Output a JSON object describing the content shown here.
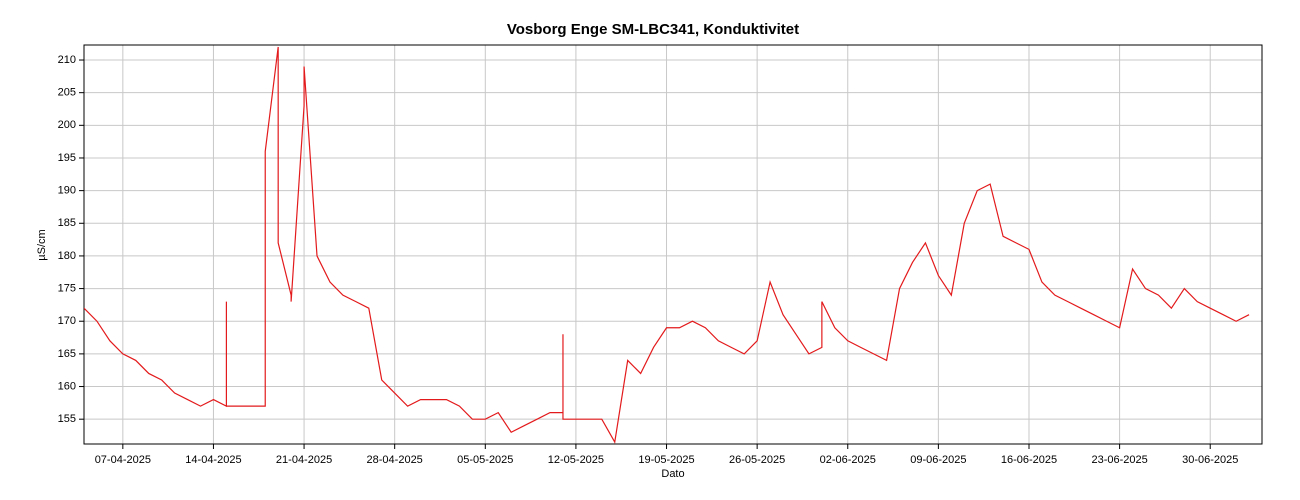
{
  "chart_data": {
    "type": "line",
    "title": "Vosborg Enge SM-LBC341, Konduktivitet",
    "x_label": "Dato",
    "y_label": "µS/cm",
    "xlim": [
      "2025-04-04",
      "2025-07-04"
    ],
    "xticks": [
      {
        "value": "2025-04-07",
        "label": "07-04-2025"
      },
      {
        "value": "2025-04-14",
        "label": "14-04-2025"
      },
      {
        "value": "2025-04-21",
        "label": "21-04-2025"
      },
      {
        "value": "2025-04-28",
        "label": "28-04-2025"
      },
      {
        "value": "2025-05-05",
        "label": "05-05-2025"
      },
      {
        "value": "2025-05-12",
        "label": "12-05-2025"
      },
      {
        "value": "2025-05-19",
        "label": "19-05-2025"
      },
      {
        "value": "2025-05-26",
        "label": "26-05-2025"
      },
      {
        "value": "2025-06-02",
        "label": "02-06-2025"
      },
      {
        "value": "2025-06-09",
        "label": "09-06-2025"
      },
      {
        "value": "2025-06-16",
        "label": "16-06-2025"
      },
      {
        "value": "2025-06-23",
        "label": "23-06-2025"
      },
      {
        "value": "2025-06-30",
        "label": "30-06-2025"
      }
    ],
    "ylim": [
      151.2,
      212.3
    ],
    "yticks": [
      155,
      160,
      165,
      170,
      175,
      180,
      185,
      190,
      195,
      200,
      205,
      210
    ],
    "grid": true,
    "x": [
      "2025-04-04",
      "2025-04-05",
      "2025-04-06",
      "2025-04-07",
      "2025-04-08",
      "2025-04-09",
      "2025-04-10",
      "2025-04-11",
      "2025-04-12",
      "2025-04-13",
      "2025-04-14",
      "2025-04-15",
      "2025-04-15",
      "2025-04-15",
      "2025-04-16",
      "2025-04-17",
      "2025-04-18",
      "2025-04-18",
      "2025-04-19",
      "2025-04-19",
      "2025-04-20",
      "2025-04-20",
      "2025-04-21",
      "2025-04-21",
      "2025-04-22",
      "2025-04-23",
      "2025-04-24",
      "2025-04-25",
      "2025-04-26",
      "2025-04-27",
      "2025-04-28",
      "2025-04-29",
      "2025-04-30",
      "2025-05-01",
      "2025-05-02",
      "2025-05-03",
      "2025-05-04",
      "2025-05-05",
      "2025-05-06",
      "2025-05-07",
      "2025-05-08",
      "2025-05-09",
      "2025-05-10",
      "2025-05-11",
      "2025-05-11",
      "2025-05-11",
      "2025-05-12",
      "2025-05-13",
      "2025-05-14",
      "2025-05-15",
      "2025-05-16",
      "2025-05-17",
      "2025-05-18",
      "2025-05-19",
      "2025-05-20",
      "2025-05-21",
      "2025-05-22",
      "2025-05-23",
      "2025-05-24",
      "2025-05-25",
      "2025-05-26",
      "2025-05-27",
      "2025-05-28",
      "2025-05-29",
      "2025-05-30",
      "2025-05-31",
      "2025-05-31",
      "2025-06-01",
      "2025-06-02",
      "2025-06-03",
      "2025-06-04",
      "2025-06-05",
      "2025-06-06",
      "2025-06-07",
      "2025-06-08",
      "2025-06-09",
      "2025-06-10",
      "2025-06-11",
      "2025-06-12",
      "2025-06-13",
      "2025-06-14",
      "2025-06-15",
      "2025-06-16",
      "2025-06-17",
      "2025-06-18",
      "2025-06-19",
      "2025-06-20",
      "2025-06-21",
      "2025-06-22",
      "2025-06-23",
      "2025-06-24",
      "2025-06-25",
      "2025-06-26",
      "2025-06-27",
      "2025-06-28",
      "2025-06-29",
      "2025-06-30",
      "2025-07-01",
      "2025-07-02",
      "2025-07-03"
    ],
    "series": [
      {
        "name": "Konduktivitet",
        "color": "#e31a1c",
        "values": [
          172,
          170,
          167,
          165,
          164,
          162,
          161,
          159,
          158,
          157,
          158,
          157,
          173,
          157,
          157,
          157,
          157,
          196,
          212,
          182,
          174,
          173,
          203,
          209,
          180,
          176,
          174,
          173,
          172,
          161,
          159,
          157,
          158,
          158,
          158,
          157,
          155,
          155,
          156,
          153,
          154,
          155,
          156,
          156,
          168,
          155,
          155,
          155,
          155,
          151.5,
          164,
          162,
          166,
          169,
          169,
          170,
          169,
          167,
          166,
          165,
          167,
          176,
          171,
          168,
          165,
          166,
          173,
          169,
          167,
          166,
          165,
          164,
          175,
          179,
          182,
          177,
          174,
          185,
          190,
          191,
          183,
          182,
          181,
          176,
          174,
          173,
          172,
          171,
          170,
          169,
          178,
          175,
          174,
          172,
          175,
          173,
          172,
          171,
          170,
          171
        ]
      }
    ]
  }
}
